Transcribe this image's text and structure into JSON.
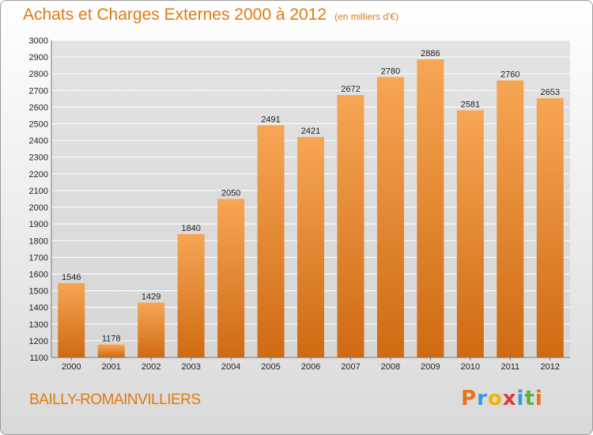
{
  "header": {
    "title": "Achats et Charges Externes 2000 à 2012",
    "subtitle": "(en milliers d'€)"
  },
  "footer": {
    "town": "BAILLY-ROMAINVILLIERS",
    "logo": [
      "P",
      "r",
      "o",
      "x",
      "i",
      "t",
      "i"
    ],
    "logo_colors": [
      "#e8741c",
      "#3a9ad9",
      "#f2b300",
      "#d93a3a",
      "#3a9ad9",
      "#59b33c",
      "#e8741c"
    ]
  },
  "colors": {
    "bar_top": "#f7a654",
    "bar_bottom": "#cf6a12",
    "grid": "#ffffff",
    "axis_text": "#222222",
    "title": "#e07a10"
  },
  "chart_data": {
    "type": "bar",
    "title": "Achats et Charges Externes 2000 à 2012",
    "subtitle": "(en milliers d'€)",
    "xlabel": "",
    "ylabel": "",
    "categories": [
      "2000",
      "2001",
      "2002",
      "2003",
      "2004",
      "2005",
      "2006",
      "2007",
      "2008",
      "2009",
      "2010",
      "2011",
      "2012"
    ],
    "values": [
      1546,
      1178,
      1429,
      1840,
      2050,
      2491,
      2421,
      2672,
      2780,
      2886,
      2581,
      2760,
      2653
    ],
    "ylim": [
      1100,
      3000
    ],
    "yticks": [
      1100,
      1200,
      1300,
      1400,
      1500,
      1600,
      1700,
      1800,
      1900,
      2000,
      2100,
      2200,
      2300,
      2400,
      2500,
      2600,
      2700,
      2800,
      2900,
      3000
    ],
    "grid": true,
    "data_labels": true
  }
}
